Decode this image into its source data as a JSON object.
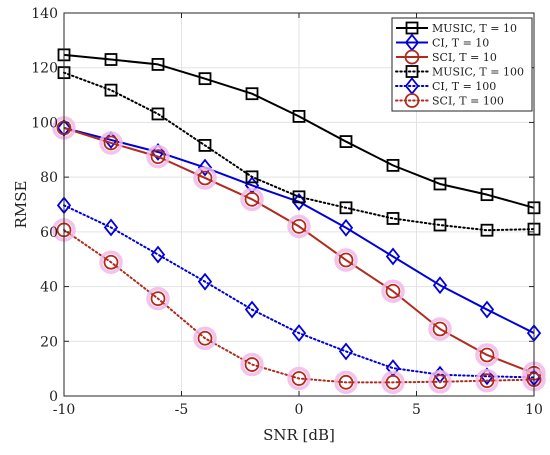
{
  "chart_data": {
    "type": "line",
    "title": "",
    "xlabel": "SNR [dB]",
    "ylabel": "RMSE",
    "xlim": [
      -10,
      10
    ],
    "ylim": [
      0,
      140
    ],
    "xticks": [
      -10,
      -5,
      0,
      5,
      10
    ],
    "yticks": [
      0,
      20,
      40,
      60,
      80,
      100,
      120,
      140
    ],
    "grid": true,
    "legend_position": "top-right",
    "x": [
      -10,
      -8,
      -6,
      -4,
      -2,
      0,
      2,
      4,
      6,
      8,
      10
    ],
    "series": [
      {
        "name": "MUSIC, T = 10",
        "color": "#000000",
        "line_style": "solid",
        "marker": "square",
        "values": [
          124.7,
          123.0,
          121.2,
          116.0,
          110.5,
          102.2,
          93.0,
          84.3,
          77.5,
          73.6,
          68.8
        ]
      },
      {
        "name": "CI, T = 10",
        "color": "#0000dd",
        "line_style": "solid",
        "marker": "diamond",
        "values": [
          98.0,
          93.6,
          89.2,
          83.5,
          77.0,
          71.0,
          61.5,
          51.0,
          40.5,
          31.6,
          23.0
        ]
      },
      {
        "name": "SCI, T = 10",
        "color": "#b22a1e",
        "line_style": "solid",
        "marker": "circle",
        "values": [
          98.0,
          92.5,
          87.5,
          79.7,
          71.9,
          62.0,
          49.7,
          38.3,
          24.5,
          15.0,
          8.3
        ]
      },
      {
        "name": "MUSIC, T = 100",
        "color": "#000000",
        "line_style": "dotted",
        "marker": "square",
        "values": [
          118.2,
          111.8,
          103.1,
          91.6,
          80.1,
          72.8,
          68.8,
          64.9,
          62.5,
          60.6,
          61.0
        ]
      },
      {
        "name": "CI, T = 100",
        "color": "#0000dd",
        "line_style": "dotted",
        "marker": "diamond",
        "values": [
          69.7,
          61.6,
          51.7,
          41.8,
          31.6,
          23.0,
          16.3,
          10.2,
          7.8,
          7.2,
          6.8
        ]
      },
      {
        "name": "SCI, T = 100",
        "color": "#b22a1e",
        "line_style": "dotted",
        "marker": "circle",
        "values": [
          60.7,
          48.9,
          35.6,
          21.1,
          11.5,
          6.4,
          5.0,
          5.0,
          5.2,
          5.6,
          6.0
        ]
      }
    ]
  }
}
